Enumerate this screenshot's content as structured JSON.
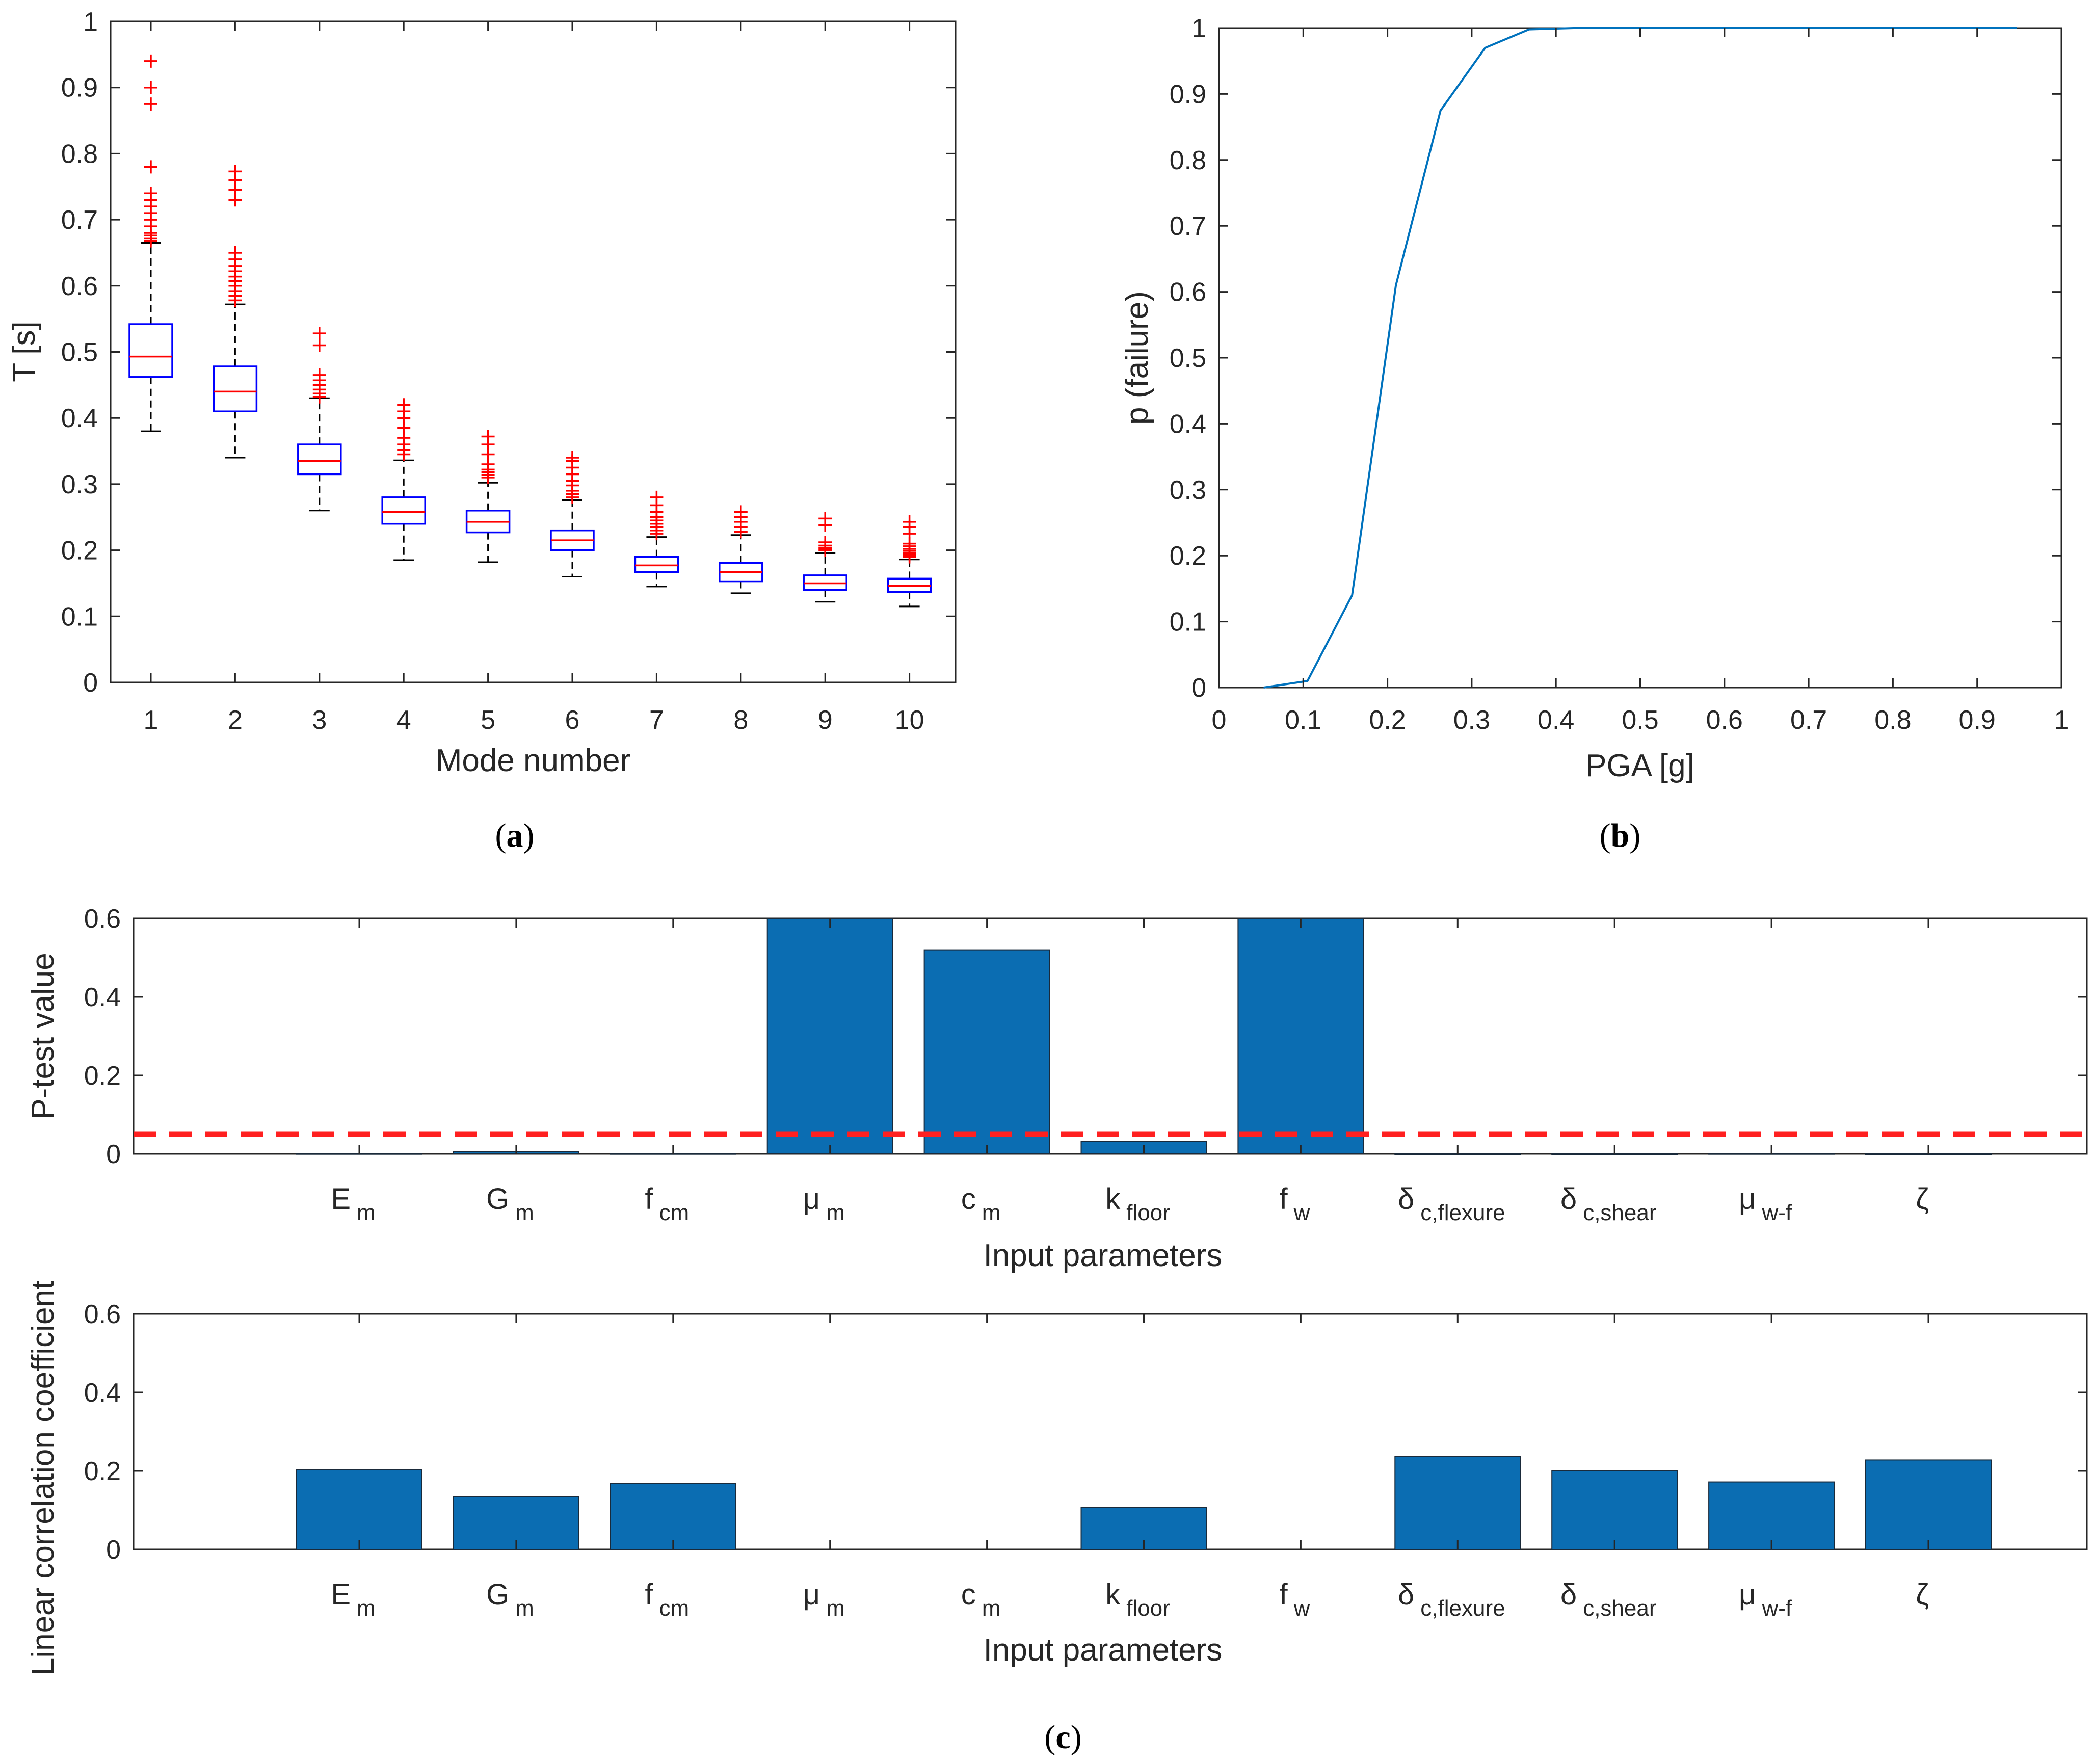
{
  "colors": {
    "box_edge": "#0000ff",
    "median": "#ff0000",
    "outlier": "#ff0000",
    "whisker": "#000000",
    "line": "#0072bd",
    "bar_fill": "#0b6db2",
    "bar_edge": "#1a2a3a",
    "threshold": "#ff2020",
    "axis": "#262626"
  },
  "chart_data": [
    {
      "id": "a",
      "type": "boxplot",
      "caption": "a",
      "xlabel": "Mode number",
      "ylabel": "T [s]",
      "ylim": [
        0,
        1
      ],
      "yticks": [
        0,
        0.1,
        0.2,
        0.3,
        0.4,
        0.5,
        0.6,
        0.7,
        0.8,
        0.9,
        1
      ],
      "ytick_labels": [
        "0",
        "0.1",
        "0.2",
        "0.3",
        "0.4",
        "0.5",
        "0.6",
        "0.7",
        "0.8",
        "0.9",
        "1"
      ],
      "categories": [
        "1",
        "2",
        "3",
        "4",
        "5",
        "6",
        "7",
        "8",
        "9",
        "10"
      ],
      "boxes": [
        {
          "q1": 0.462,
          "median": 0.493,
          "q3": 0.542,
          "whisker_low": 0.38,
          "whisker_high": 0.665,
          "outliers": [
            0.668,
            0.672,
            0.676,
            0.68,
            0.69,
            0.7,
            0.71,
            0.72,
            0.73,
            0.74,
            0.78,
            0.875,
            0.9,
            0.94
          ]
        },
        {
          "q1": 0.41,
          "median": 0.44,
          "q3": 0.478,
          "whisker_low": 0.34,
          "whisker_high": 0.572,
          "outliers": [
            0.578,
            0.585,
            0.592,
            0.6,
            0.607,
            0.614,
            0.622,
            0.63,
            0.64,
            0.65,
            0.73,
            0.745,
            0.76,
            0.773
          ]
        },
        {
          "q1": 0.315,
          "median": 0.335,
          "q3": 0.36,
          "whisker_low": 0.26,
          "whisker_high": 0.43,
          "outliers": [
            0.432,
            0.437,
            0.443,
            0.45,
            0.457,
            0.465,
            0.51,
            0.528
          ]
        },
        {
          "q1": 0.24,
          "median": 0.258,
          "q3": 0.28,
          "whisker_low": 0.185,
          "whisker_high": 0.336,
          "outliers": [
            0.345,
            0.352,
            0.36,
            0.37,
            0.385,
            0.4,
            0.41,
            0.42
          ]
        },
        {
          "q1": 0.227,
          "median": 0.243,
          "q3": 0.26,
          "whisker_low": 0.182,
          "whisker_high": 0.302,
          "outliers": [
            0.31,
            0.314,
            0.318,
            0.322,
            0.33,
            0.345,
            0.36,
            0.372
          ]
        },
        {
          "q1": 0.2,
          "median": 0.215,
          "q3": 0.23,
          "whisker_low": 0.16,
          "whisker_high": 0.276,
          "outliers": [
            0.28,
            0.285,
            0.29,
            0.298,
            0.305,
            0.315,
            0.325,
            0.335,
            0.34
          ]
        },
        {
          "q1": 0.167,
          "median": 0.177,
          "q3": 0.19,
          "whisker_low": 0.145,
          "whisker_high": 0.22,
          "outliers": [
            0.225,
            0.23,
            0.235,
            0.24,
            0.245,
            0.25,
            0.258,
            0.268,
            0.28
          ]
        },
        {
          "q1": 0.153,
          "median": 0.167,
          "q3": 0.181,
          "whisker_low": 0.135,
          "whisker_high": 0.223,
          "outliers": [
            0.228,
            0.235,
            0.243,
            0.25,
            0.258
          ]
        },
        {
          "q1": 0.14,
          "median": 0.15,
          "q3": 0.162,
          "whisker_low": 0.122,
          "whisker_high": 0.196,
          "outliers": [
            0.2,
            0.203,
            0.207,
            0.212,
            0.238,
            0.248
          ]
        },
        {
          "q1": 0.137,
          "median": 0.146,
          "q3": 0.157,
          "whisker_low": 0.115,
          "whisker_high": 0.186,
          "outliers": [
            0.19,
            0.193,
            0.196,
            0.199,
            0.202,
            0.206,
            0.21,
            0.225,
            0.235,
            0.243
          ]
        }
      ]
    },
    {
      "id": "b",
      "type": "line",
      "caption": "b",
      "xlabel": "PGA [g]",
      "ylabel": "p (failure)",
      "xlim": [
        0,
        1
      ],
      "ylim": [
        0,
        1
      ],
      "xticks": [
        0,
        0.1,
        0.2,
        0.3,
        0.4,
        0.5,
        0.6,
        0.7,
        0.8,
        0.9,
        1
      ],
      "xtick_labels": [
        "0",
        "0.1",
        "0.2",
        "0.3",
        "0.4",
        "0.5",
        "0.6",
        "0.7",
        "0.8",
        "0.9",
        "1"
      ],
      "yticks": [
        0,
        0.1,
        0.2,
        0.3,
        0.4,
        0.5,
        0.6,
        0.7,
        0.8,
        0.9,
        1
      ],
      "ytick_labels": [
        "0",
        "0.1",
        "0.2",
        "0.3",
        "0.4",
        "0.5",
        "0.6",
        "0.7",
        "0.8",
        "0.9",
        "1"
      ],
      "x": [
        0.053,
        0.105,
        0.158,
        0.21,
        0.263,
        0.316,
        0.368,
        0.421,
        0.474,
        0.526,
        0.579,
        0.632,
        0.684,
        0.737,
        0.789,
        0.842,
        0.895,
        0.947
      ],
      "y": [
        0,
        0.01,
        0.14,
        0.61,
        0.875,
        0.97,
        0.998,
        1,
        1,
        1,
        1,
        1,
        1,
        1,
        1,
        1,
        1,
        1
      ]
    },
    {
      "id": "c-top",
      "type": "bar",
      "caption": "c",
      "xlabel": "Input parameters",
      "ylabel": "P-test value",
      "ylim": [
        0,
        0.6
      ],
      "yticks": [
        0,
        0.2,
        0.4,
        0.6
      ],
      "ytick_labels": [
        "0",
        "0.2",
        "0.4",
        "0.6"
      ],
      "threshold": 0.05,
      "categories": [
        {
          "main": "E",
          "sub": "m"
        },
        {
          "main": "G",
          "sub": "m"
        },
        {
          "main": "f",
          "sub": "cm"
        },
        {
          "main": "μ",
          "sub": "m"
        },
        {
          "main": "c",
          "sub": "m"
        },
        {
          "main": "k",
          "sub": "floor"
        },
        {
          "main": "f",
          "sub": "w"
        },
        {
          "main": "δ",
          "sub": "c,flexure"
        },
        {
          "main": "δ",
          "sub": "c,shear"
        },
        {
          "main": "μ",
          "sub": "w-f"
        },
        {
          "main": "ζ",
          "sub": ""
        }
      ],
      "values": [
        0.001,
        0.006,
        0.001,
        0.6,
        0.52,
        0.032,
        0.6,
        0.0005,
        0.0005,
        0.001,
        0.0005
      ]
    },
    {
      "id": "c-bottom",
      "type": "bar",
      "xlabel": "Input parameters",
      "ylabel": "Linear correlation coefficient",
      "ylim": [
        0,
        0.6
      ],
      "yticks": [
        0,
        0.2,
        0.4,
        0.6
      ],
      "ytick_labels": [
        "0",
        "0.2",
        "0.4",
        "0.6"
      ],
      "categories": [
        {
          "main": "E",
          "sub": "m"
        },
        {
          "main": "G",
          "sub": "m"
        },
        {
          "main": "f",
          "sub": "cm"
        },
        {
          "main": "μ",
          "sub": "m"
        },
        {
          "main": "c",
          "sub": "m"
        },
        {
          "main": "k",
          "sub": "floor"
        },
        {
          "main": "f",
          "sub": "w"
        },
        {
          "main": "δ",
          "sub": "c,flexure"
        },
        {
          "main": "δ",
          "sub": "c,shear"
        },
        {
          "main": "μ",
          "sub": "w-f"
        },
        {
          "main": "ζ",
          "sub": ""
        }
      ],
      "values": [
        0.203,
        0.134,
        0.168,
        0,
        0,
        0.107,
        0,
        0.237,
        0.2,
        0.172,
        0.228
      ]
    }
  ]
}
